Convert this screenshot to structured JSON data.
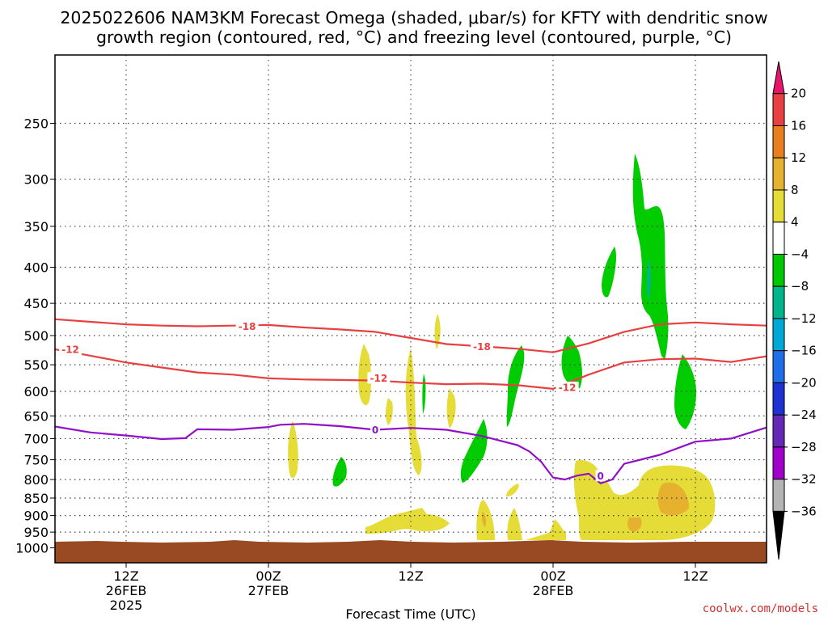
{
  "title": {
    "line1": "2025022606 NAM3KM Forecast Omega (shaded, μbar/s) for KFTY with dendritic snow",
    "line2": "growth region (contoured, red, °C) and freezing level (contoured, purple, °C)"
  },
  "credit": "coolwx.com/models",
  "chart_data": {
    "type": "area",
    "title": "2025022606 NAM3KM Forecast Omega (shaded, μbar/s) for KFTY with dendritic snow growth region (contoured, red, °C) and freezing level (contoured, purple, °C)",
    "xlabel": "Forecast Time (UTC)",
    "ylabel": "",
    "x_range_hours_from_2025022606": [
      0,
      60
    ],
    "y_range_hPa": [
      1050,
      200
    ],
    "y_scale": "log-pressure",
    "grid": true,
    "x_ticks": [
      {
        "hour": 6,
        "lines": [
          "12Z",
          "26FEB",
          "2025"
        ]
      },
      {
        "hour": 18,
        "lines": [
          "00Z",
          "27FEB"
        ]
      },
      {
        "hour": 30,
        "lines": [
          "12Z"
        ]
      },
      {
        "hour": 42,
        "lines": [
          "00Z",
          "28FEB"
        ]
      },
      {
        "hour": 54,
        "lines": [
          "12Z"
        ]
      }
    ],
    "y_ticks": [
      250,
      300,
      350,
      400,
      450,
      500,
      550,
      600,
      650,
      700,
      750,
      800,
      850,
      900,
      950,
      1000
    ],
    "colorbar": {
      "ticks": [
        "20",
        "16",
        "12",
        "8",
        "4",
        "−4",
        "−8",
        "−12",
        "−16",
        "−20",
        "−24",
        "−28",
        "−32",
        "−36"
      ],
      "colors": [
        "#e8146e",
        "#e84040",
        "#e87e1e",
        "#e5b12e",
        "#e5dc38",
        "#ffffff",
        "#00c800",
        "#00b48c",
        "#00a8d8",
        "#1e6ee8",
        "#1e32d2",
        "#6428b4",
        "#a000c8",
        "#b4b4b4",
        "#000000"
      ]
    },
    "series": [
      {
        "name": "-18",
        "color": "#e84040",
        "x": [
          0,
          3,
          6,
          9,
          12,
          15,
          18,
          21,
          24,
          27,
          30,
          33,
          36,
          39,
          42,
          45,
          48,
          51,
          54,
          57,
          60
        ],
        "y": [
          474,
          478,
          482,
          484,
          485,
          484,
          483,
          487,
          490,
          494,
          504,
          514,
          518,
          522,
          528,
          513,
          494,
          482,
          479,
          482,
          484
        ]
      },
      {
        "name": "-12",
        "color": "#e84040",
        "x": [
          0,
          3,
          6,
          9,
          12,
          15,
          18,
          21,
          24,
          27,
          30,
          33,
          36,
          39,
          42,
          45,
          48,
          51,
          54,
          57,
          60
        ],
        "y": [
          523,
          534,
          546,
          555,
          564,
          568,
          575,
          577,
          578,
          579,
          583,
          586,
          585,
          588,
          595,
          568,
          546,
          540,
          539,
          545,
          535
        ]
      },
      {
        "name": "0",
        "color": "#9010c8",
        "x": [
          0,
          3,
          6,
          9,
          11,
          12,
          15,
          18,
          19,
          21,
          24,
          27,
          30,
          33,
          36,
          39,
          40,
          41,
          42,
          43,
          44,
          45,
          46,
          47,
          48,
          51,
          54,
          57,
          60
        ],
        "y": [
          673,
          686,
          693,
          701,
          699,
          679,
          680,
          674,
          669,
          667,
          672,
          680,
          676,
          680,
          694,
          715,
          730,
          755,
          795,
          800,
          790,
          785,
          810,
          800,
          760,
          738,
          707,
          700,
          675
        ]
      }
    ],
    "contour_labels": [
      {
        "text": "-18",
        "x": 16.2,
        "y": 485
      },
      {
        "text": "-18",
        "x": 36.0,
        "y": 518
      },
      {
        "text": "-12",
        "x": 1.3,
        "y": 523
      },
      {
        "text": "-12",
        "x": 27.3,
        "y": 574
      },
      {
        "text": "-12",
        "x": 43.2,
        "y": 592
      },
      {
        "text": "0",
        "x": 27.0,
        "y": 680
      },
      {
        "text": "0",
        "x": 46.0,
        "y": 790
      }
    ],
    "terrain": {
      "color": "#9a4a22",
      "surface_hPa": 985
    }
  }
}
